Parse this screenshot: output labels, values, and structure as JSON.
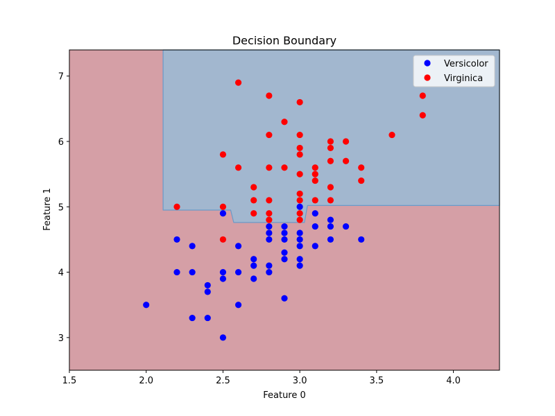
{
  "chart_data": {
    "type": "scatter",
    "title": "Decision Boundary",
    "xlabel": "Feature 0",
    "ylabel": "Feature 1",
    "xlim": [
      1.5,
      4.3
    ],
    "ylim": [
      2.5,
      7.4
    ],
    "xticks": [
      "1.5",
      "2.0",
      "2.5",
      "3.0",
      "3.5",
      "4.0"
    ],
    "yticks": [
      "3",
      "4",
      "5",
      "6",
      "7"
    ],
    "grid": false,
    "legend_position": "top-right",
    "background_region": {
      "color": "#d59fa6",
      "class": "Virginica"
    },
    "foreground_region": {
      "color": "#a2b7cf",
      "edge_color": "#6a9ac8",
      "class": "Versicolor",
      "boundary": [
        [
          2.11,
          7.4
        ],
        [
          2.11,
          4.95
        ],
        [
          2.55,
          4.95
        ],
        [
          2.57,
          4.76
        ],
        [
          3.03,
          4.76
        ],
        [
          3.05,
          5.02
        ],
        [
          4.3,
          5.02
        ],
        [
          4.3,
          7.4
        ]
      ]
    },
    "series": [
      {
        "name": "Versicolor",
        "color": "#0000ff",
        "points": [
          [
            2.0,
            3.5
          ],
          [
            2.2,
            4.0
          ],
          [
            2.2,
            4.5
          ],
          [
            2.3,
            3.3
          ],
          [
            2.3,
            4.0
          ],
          [
            2.3,
            4.4
          ],
          [
            2.4,
            3.3
          ],
          [
            2.4,
            3.7
          ],
          [
            2.4,
            3.8
          ],
          [
            2.5,
            3.0
          ],
          [
            2.5,
            3.9
          ],
          [
            2.5,
            4.0
          ],
          [
            2.5,
            4.9
          ],
          [
            2.6,
            3.5
          ],
          [
            2.6,
            4.0
          ],
          [
            2.6,
            4.4
          ],
          [
            2.7,
            3.9
          ],
          [
            2.7,
            4.1
          ],
          [
            2.7,
            4.2
          ],
          [
            2.8,
            4.0
          ],
          [
            2.8,
            4.1
          ],
          [
            2.8,
            4.5
          ],
          [
            2.8,
            4.6
          ],
          [
            2.8,
            4.7
          ],
          [
            2.9,
            3.6
          ],
          [
            2.9,
            4.2
          ],
          [
            2.9,
            4.3
          ],
          [
            2.9,
            4.5
          ],
          [
            2.9,
            4.6
          ],
          [
            2.9,
            4.7
          ],
          [
            3.0,
            4.1
          ],
          [
            3.0,
            4.2
          ],
          [
            3.0,
            4.4
          ],
          [
            3.0,
            4.5
          ],
          [
            3.0,
            4.6
          ],
          [
            3.0,
            5.0
          ],
          [
            3.1,
            4.4
          ],
          [
            3.1,
            4.7
          ],
          [
            3.1,
            4.9
          ],
          [
            3.2,
            4.5
          ],
          [
            3.2,
            4.7
          ],
          [
            3.2,
            4.8
          ],
          [
            3.3,
            4.7
          ],
          [
            3.4,
            4.5
          ]
        ]
      },
      {
        "name": "Virginica",
        "color": "#ff0000",
        "points": [
          [
            2.2,
            5.0
          ],
          [
            2.5,
            4.5
          ],
          [
            2.5,
            5.0
          ],
          [
            2.5,
            5.8
          ],
          [
            2.6,
            5.6
          ],
          [
            2.6,
            6.9
          ],
          [
            2.7,
            4.9
          ],
          [
            2.7,
            5.1
          ],
          [
            2.7,
            5.3
          ],
          [
            2.8,
            4.8
          ],
          [
            2.8,
            4.9
          ],
          [
            2.8,
            5.1
          ],
          [
            2.8,
            5.6
          ],
          [
            2.8,
            6.1
          ],
          [
            2.8,
            6.7
          ],
          [
            2.9,
            5.6
          ],
          [
            2.9,
            6.3
          ],
          [
            3.0,
            4.8
          ],
          [
            3.0,
            4.9
          ],
          [
            3.0,
            5.1
          ],
          [
            3.0,
            5.2
          ],
          [
            3.0,
            5.5
          ],
          [
            3.0,
            5.8
          ],
          [
            3.0,
            5.9
          ],
          [
            3.0,
            6.1
          ],
          [
            3.0,
            6.6
          ],
          [
            3.1,
            5.1
          ],
          [
            3.1,
            5.4
          ],
          [
            3.1,
            5.5
          ],
          [
            3.1,
            5.6
          ],
          [
            3.2,
            5.1
          ],
          [
            3.2,
            5.3
          ],
          [
            3.2,
            5.7
          ],
          [
            3.2,
            5.9
          ],
          [
            3.2,
            6.0
          ],
          [
            3.3,
            5.7
          ],
          [
            3.3,
            6.0
          ],
          [
            3.4,
            5.4
          ],
          [
            3.4,
            5.6
          ],
          [
            3.6,
            6.1
          ],
          [
            3.8,
            6.4
          ],
          [
            3.8,
            6.7
          ]
        ]
      }
    ]
  }
}
